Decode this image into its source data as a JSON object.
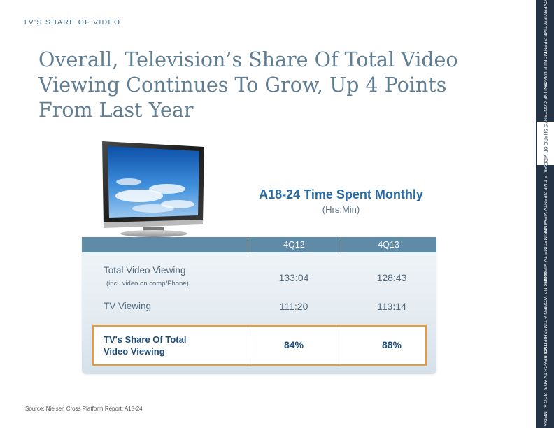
{
  "section_label": "TV'S SHARE OF VIDEO",
  "headline": [
    "Overall, Television’s Share Of Total Video",
    "Viewing Continues To Grow, Up 4 Points",
    "From Last Year"
  ],
  "table": {
    "title": "A18-24 Time Spent Monthly",
    "subtitle": "(Hrs:Min)",
    "columns": [
      "4Q12",
      "4Q13"
    ],
    "rows": [
      {
        "label": "Total Video Viewing",
        "sublabel": "(incl. video on comp/Phone)",
        "values": [
          "133:04",
          "128:43"
        ]
      },
      {
        "label": "TV Viewing",
        "values": [
          "111:20",
          "113:14"
        ]
      }
    ],
    "highlight": {
      "label_line1": "TV's Share Of Total",
      "label_line2": "Video Viewing",
      "values": [
        "84%",
        "88%"
      ]
    }
  },
  "source": "Source: Nielsen Cross Platform Report; A18-24",
  "nav": {
    "items": [
      {
        "label": "OVERVIEW",
        "active": false
      },
      {
        "label": "TIME SPENT",
        "active": false
      },
      {
        "label": "MOBILE USAGE",
        "active": false
      },
      {
        "label": "ONLINE CONTENT",
        "active": false
      },
      {
        "label": "TV'S SHARE OF VIDEO",
        "active": true
      },
      {
        "label": "CABLE TIME SPENT",
        "active": false
      },
      {
        "label": "TV VIEWING",
        "active": false
      },
      {
        "label": "PRIMETIME TV VIEWING",
        "active": false
      },
      {
        "label": "WORKING WOMEN & TIMESHIFTING",
        "active": false
      },
      {
        "label": "TV'S REACH",
        "active": false
      },
      {
        "label": "TV ADS",
        "active": false
      },
      {
        "label": "SOCIAL MEDIA",
        "active": false
      }
    ]
  },
  "colors": {
    "header_bar": "#5f8ba7",
    "highlight_border": "#ee9a32",
    "nav_bg": "#243446",
    "title_blue": "#2a6aa3"
  },
  "icons": {
    "tv": "flat-screen-tv-icon"
  }
}
